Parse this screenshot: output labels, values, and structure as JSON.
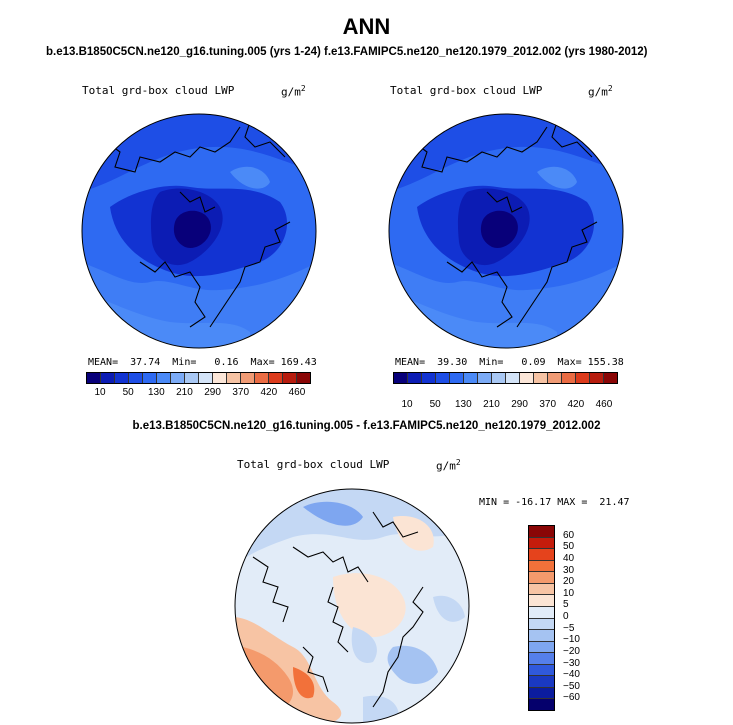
{
  "figure": {
    "season": "ANN",
    "case_a": "b.e13.B1850C5CN.ne120_g16.tuning.005 (yrs 1-24)",
    "case_b": "f.e13.FAMIPC5.ne120_ne120.1979_2012.002 (yrs 1980-2012)",
    "diff_title": "b.e13.B1850C5CN.ne120_g16.tuning.005 - f.e13.FAMIPC5.ne120_ne120.1979_2012.002"
  },
  "panel_a": {
    "variable": "Total grd-box cloud LWP",
    "units_base": "g/m",
    "units_exp": "2",
    "stats": "MEAN=  37.74  Min=   0.16  Max= 169.43",
    "mean": 37.74,
    "min": 0.16,
    "max": 169.43
  },
  "panel_b": {
    "variable": "Total grd-box cloud LWP",
    "units_base": "g/m",
    "units_exp": "2",
    "stats": "MEAN=  39.30  Min=   0.09  Max= 155.38",
    "mean": 39.3,
    "min": 0.09,
    "max": 155.38
  },
  "panel_c": {
    "variable": "Total grd-box cloud LWP",
    "units_base": "g/m",
    "units_exp": "2",
    "stats": "MIN = -16.17 MAX =  21.47",
    "min": -16.17,
    "max": 21.47
  },
  "colorbar_abs": {
    "colors": [
      "#08007a",
      "#0c1cb4",
      "#1233d2",
      "#1e4ee6",
      "#2e6af2",
      "#4b8af7",
      "#7cabf6",
      "#a9c8f4",
      "#d4e4f8",
      "#fbe6d8",
      "#f6c3a4",
      "#f09b75",
      "#ea6c44",
      "#dc3b1c",
      "#b71c0e",
      "#8a0606"
    ],
    "tick_labels": [
      "10",
      "50",
      "130",
      "210",
      "290",
      "370",
      "420",
      "460"
    ],
    "tick_positions": [
      1,
      3,
      5,
      7,
      9,
      11,
      13,
      15
    ]
  },
  "colorbar_diff": {
    "colors": [
      "#8a0606",
      "#c41c0c",
      "#e5431c",
      "#f2713a",
      "#f49a6c",
      "#f7c4a4",
      "#fbe4d4",
      "#e2ecf8",
      "#c4d8f4",
      "#a5c3f2",
      "#7ea6f0",
      "#557fea",
      "#3059dc",
      "#1a39c2",
      "#0b1c9e",
      "#05006c"
    ],
    "labels": [
      "60",
      "50",
      "40",
      "30",
      "20",
      "10",
      "5",
      "0",
      "−5",
      "−10",
      "−20",
      "−30",
      "−40",
      "−50",
      "−60"
    ]
  },
  "map": {
    "projection": "north polar stereographic",
    "legend_placement": "right"
  }
}
